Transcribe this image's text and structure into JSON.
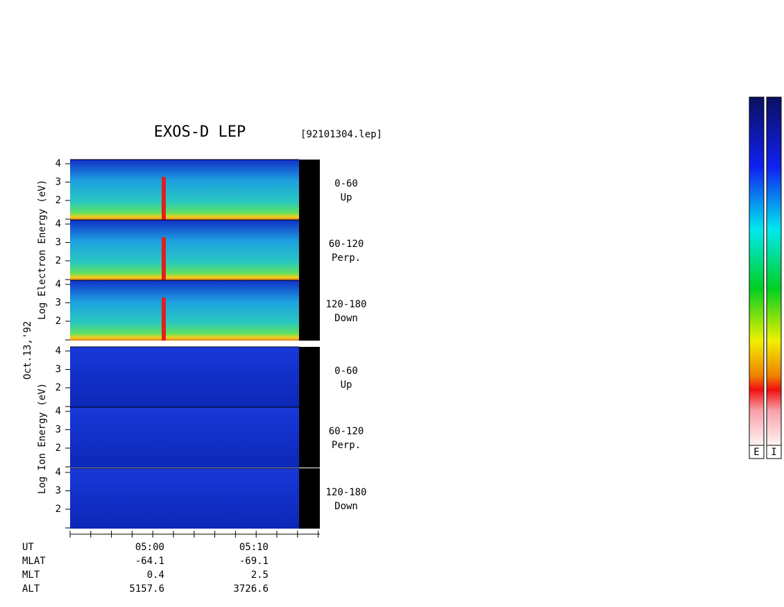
{
  "title": "EXOS-D LEP",
  "file": "[92101304.lep]",
  "date": "Oct.13,'92",
  "electron_axis_label": "Log Electron Energy (eV)",
  "ion_axis_label": "Log Ion Energy (eV)",
  "panel_ticks": [
    4,
    3,
    2
  ],
  "electron_panels": [
    {
      "range": "0-60",
      "direction": "Up"
    },
    {
      "range": "60-120",
      "direction": "Perp."
    },
    {
      "range": "120-180",
      "direction": "Down"
    }
  ],
  "ion_panels": [
    {
      "range": "0-60",
      "direction": "Up"
    },
    {
      "range": "60-120",
      "direction": "Perp."
    },
    {
      "range": "120-180",
      "direction": "Down"
    }
  ],
  "time_rows": [
    "UT",
    "MLAT",
    "MLT",
    "ALT"
  ],
  "time_columns": [
    [
      "05:00",
      "-64.1",
      "0.4",
      "5157.6"
    ],
    [
      "05:10",
      "-69.1",
      "2.5",
      "3726.6"
    ]
  ],
  "colorbar_labels": [
    "E",
    "I"
  ]
}
